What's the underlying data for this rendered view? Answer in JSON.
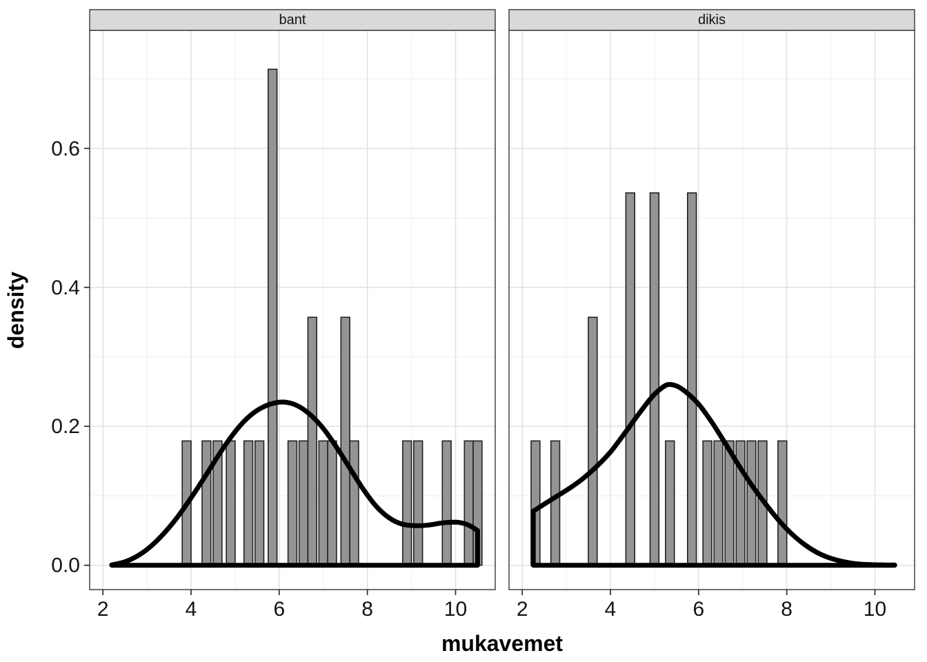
{
  "chart_data": {
    "type": "bar",
    "subtype": "faceted-histogram-with-density",
    "title": "",
    "xlabel": "mukavemet",
    "ylabel": "density",
    "legend": "none",
    "grid": true,
    "xlim": [
      1.7,
      10.9
    ],
    "ylim": [
      -0.035,
      0.77
    ],
    "x_ticks": [
      2,
      4,
      6,
      8,
      10
    ],
    "x_minor_ticks": [
      3,
      5,
      7,
      9
    ],
    "y_ticks": [
      0,
      0.2,
      0.4,
      0.6
    ],
    "y_tick_labels": [
      "0.0",
      "0.2",
      "0.4",
      "0.6"
    ],
    "y_minor_ticks": [
      0.1,
      0.3,
      0.5,
      0.7
    ],
    "binwidth": 0.2,
    "colors": {
      "panel_bg": "#FFFFFF",
      "grid_major": "#E2E2E2",
      "grid_minor": "#F1F1F1",
      "bar_fill": "#949494",
      "bar_stroke": "#202020",
      "density": "#000000",
      "border": "#333333",
      "strip_bg": "#D9D9D9",
      "tick": "#333333"
    },
    "facets": [
      {
        "label": "bant",
        "bars": [
          [
            3.9,
            0.179
          ],
          [
            4.35,
            0.179
          ],
          [
            4.6,
            0.179
          ],
          [
            4.9,
            0.179
          ],
          [
            5.3,
            0.179
          ],
          [
            5.55,
            0.179
          ],
          [
            5.85,
            0.714
          ],
          [
            6.3,
            0.179
          ],
          [
            6.55,
            0.179
          ],
          [
            6.75,
            0.357
          ],
          [
            7.0,
            0.179
          ],
          [
            7.2,
            0.179
          ],
          [
            7.5,
            0.357
          ],
          [
            7.7,
            0.179
          ],
          [
            8.9,
            0.179
          ],
          [
            9.15,
            0.179
          ],
          [
            9.8,
            0.179
          ],
          [
            10.3,
            0.179
          ],
          [
            10.5,
            0.179
          ]
        ],
        "density": [
          [
            2.2,
            0.0005
          ],
          [
            2.5,
            0.005
          ],
          [
            2.8,
            0.014
          ],
          [
            3.1,
            0.028
          ],
          [
            3.4,
            0.047
          ],
          [
            3.7,
            0.07
          ],
          [
            4.0,
            0.097
          ],
          [
            4.3,
            0.126
          ],
          [
            4.6,
            0.156
          ],
          [
            4.9,
            0.184
          ],
          [
            5.2,
            0.207
          ],
          [
            5.5,
            0.223
          ],
          [
            5.8,
            0.232
          ],
          [
            6.1,
            0.235
          ],
          [
            6.4,
            0.23
          ],
          [
            6.7,
            0.217
          ],
          [
            7.0,
            0.197
          ],
          [
            7.3,
            0.17
          ],
          [
            7.6,
            0.14
          ],
          [
            7.9,
            0.11
          ],
          [
            8.2,
            0.085
          ],
          [
            8.5,
            0.068
          ],
          [
            8.8,
            0.059
          ],
          [
            9.1,
            0.057
          ],
          [
            9.4,
            0.058
          ],
          [
            9.7,
            0.061
          ],
          [
            10.0,
            0.062
          ],
          [
            10.2,
            0.06
          ],
          [
            10.35,
            0.056
          ],
          [
            10.5,
            0.05
          ]
        ]
      },
      {
        "label": "dikis",
        "bars": [
          [
            2.3,
            0.179
          ],
          [
            2.75,
            0.179
          ],
          [
            3.6,
            0.357
          ],
          [
            4.45,
            0.536
          ],
          [
            5.0,
            0.536
          ],
          [
            5.35,
            0.179
          ],
          [
            5.85,
            0.536
          ],
          [
            6.2,
            0.179
          ],
          [
            6.45,
            0.179
          ],
          [
            6.7,
            0.179
          ],
          [
            6.95,
            0.179
          ],
          [
            7.2,
            0.179
          ],
          [
            7.45,
            0.179
          ],
          [
            7.9,
            0.179
          ]
        ],
        "density": [
          [
            2.25,
            0.078
          ],
          [
            2.5,
            0.088
          ],
          [
            2.8,
            0.1
          ],
          [
            3.1,
            0.112
          ],
          [
            3.4,
            0.126
          ],
          [
            3.7,
            0.143
          ],
          [
            4.0,
            0.163
          ],
          [
            4.3,
            0.188
          ],
          [
            4.6,
            0.214
          ],
          [
            4.9,
            0.239
          ],
          [
            5.1,
            0.252
          ],
          [
            5.3,
            0.26
          ],
          [
            5.5,
            0.258
          ],
          [
            5.7,
            0.25
          ],
          [
            6.0,
            0.232
          ],
          [
            6.3,
            0.206
          ],
          [
            6.6,
            0.176
          ],
          [
            6.9,
            0.145
          ],
          [
            7.2,
            0.116
          ],
          [
            7.5,
            0.09
          ],
          [
            7.8,
            0.066
          ],
          [
            8.1,
            0.046
          ],
          [
            8.4,
            0.03
          ],
          [
            8.7,
            0.018
          ],
          [
            9.0,
            0.01
          ],
          [
            9.3,
            0.005
          ],
          [
            9.6,
            0.002
          ],
          [
            9.9,
            0.001
          ],
          [
            10.2,
            0.0005
          ],
          [
            10.45,
            0.0003
          ]
        ]
      }
    ]
  }
}
